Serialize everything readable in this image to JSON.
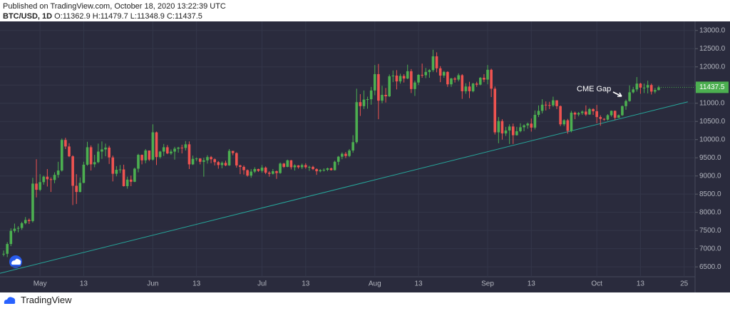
{
  "header": {
    "published": "Published on TradingView.com, October 18, 2020 13:22:39 UTC",
    "symbol": "BTC/USD, 1D",
    "ohlc": [
      "O:11362.9",
      "H:11479.7",
      "L:11348.9",
      "C:11437.5"
    ]
  },
  "footer": {
    "brand": "TradingView"
  },
  "chart_data": {
    "type": "candlestick",
    "up_color": "#4caf50",
    "down_color": "#ef5350",
    "grid": true,
    "annotation": {
      "text": "CME Gap"
    },
    "trendline": {
      "x": [
        "2020-04-20",
        "2020-10-26"
      ],
      "y": [
        6324,
        11039
      ],
      "color": "#26a69a"
    },
    "xlim": [
      "2020-04-20",
      "2020-10-28"
    ],
    "xticks": [
      {
        "value": "2020-05-01",
        "label": "May"
      },
      {
        "value": "2020-05-13",
        "label": "13"
      },
      {
        "value": "2020-06-01",
        "label": "Jun"
      },
      {
        "value": "2020-06-13",
        "label": "13"
      },
      {
        "value": "2020-07-01",
        "label": "Jul"
      },
      {
        "value": "2020-07-13",
        "label": "13"
      },
      {
        "value": "2020-08-01",
        "label": "Aug"
      },
      {
        "value": "2020-08-13",
        "label": "13"
      },
      {
        "value": "2020-09-01",
        "label": "Sep"
      },
      {
        "value": "2020-09-13",
        "label": "13"
      },
      {
        "value": "2020-10-01",
        "label": "Oct"
      },
      {
        "value": "2020-10-13",
        "label": "13"
      },
      {
        "value": "2020-10-25",
        "label": "25"
      }
    ],
    "ylim": [
      6150,
      13250
    ],
    "yticks": [
      {
        "value": 6500,
        "label": "6500.0"
      },
      {
        "value": 7000,
        "label": "7000.0"
      },
      {
        "value": 7500,
        "label": "7500.0"
      },
      {
        "value": 8000,
        "label": "8000.0"
      },
      {
        "value": 8500,
        "label": "8500.0"
      },
      {
        "value": 9000,
        "label": "9000.0"
      },
      {
        "value": 9500,
        "label": "9500.0"
      },
      {
        "value": 10000,
        "label": "10000.0"
      },
      {
        "value": 10500,
        "label": "10500.0"
      },
      {
        "value": 11000,
        "label": "11000.0"
      },
      {
        "value": 11500,
        "label": "11500.0"
      },
      {
        "value": 12000,
        "label": "12000.0"
      },
      {
        "value": 12500,
        "label": "12500.0"
      },
      {
        "value": 13000,
        "label": "13000.0"
      }
    ],
    "x": [
      "2020-04-21",
      "2020-04-22",
      "2020-04-23",
      "2020-04-24",
      "2020-04-25",
      "2020-04-26",
      "2020-04-27",
      "2020-04-28",
      "2020-04-29",
      "2020-04-30",
      "2020-05-01",
      "2020-05-02",
      "2020-05-03",
      "2020-05-04",
      "2020-05-05",
      "2020-05-06",
      "2020-05-07",
      "2020-05-08",
      "2020-05-09",
      "2020-05-10",
      "2020-05-11",
      "2020-05-12",
      "2020-05-13",
      "2020-05-14",
      "2020-05-15",
      "2020-05-16",
      "2020-05-17",
      "2020-05-18",
      "2020-05-19",
      "2020-05-20",
      "2020-05-21",
      "2020-05-22",
      "2020-05-23",
      "2020-05-24",
      "2020-05-25",
      "2020-05-26",
      "2020-05-27",
      "2020-05-28",
      "2020-05-29",
      "2020-05-30",
      "2020-05-31",
      "2020-06-01",
      "2020-06-02",
      "2020-06-03",
      "2020-06-04",
      "2020-06-05",
      "2020-06-06",
      "2020-06-07",
      "2020-06-08",
      "2020-06-09",
      "2020-06-10",
      "2020-06-11",
      "2020-06-12",
      "2020-06-13",
      "2020-06-14",
      "2020-06-15",
      "2020-06-16",
      "2020-06-17",
      "2020-06-18",
      "2020-06-19",
      "2020-06-20",
      "2020-06-21",
      "2020-06-22",
      "2020-06-23",
      "2020-06-24",
      "2020-06-25",
      "2020-06-26",
      "2020-06-27",
      "2020-06-28",
      "2020-06-29",
      "2020-06-30",
      "2020-07-01",
      "2020-07-02",
      "2020-07-03",
      "2020-07-04",
      "2020-07-05",
      "2020-07-06",
      "2020-07-07",
      "2020-07-08",
      "2020-07-09",
      "2020-07-10",
      "2020-07-11",
      "2020-07-12",
      "2020-07-13",
      "2020-07-14",
      "2020-07-15",
      "2020-07-16",
      "2020-07-17",
      "2020-07-18",
      "2020-07-19",
      "2020-07-20",
      "2020-07-21",
      "2020-07-22",
      "2020-07-23",
      "2020-07-24",
      "2020-07-25",
      "2020-07-26",
      "2020-07-27",
      "2020-07-28",
      "2020-07-29",
      "2020-07-30",
      "2020-07-31",
      "2020-08-01",
      "2020-08-02",
      "2020-08-03",
      "2020-08-04",
      "2020-08-05",
      "2020-08-06",
      "2020-08-07",
      "2020-08-08",
      "2020-08-09",
      "2020-08-10",
      "2020-08-11",
      "2020-08-12",
      "2020-08-13",
      "2020-08-14",
      "2020-08-15",
      "2020-08-16",
      "2020-08-17",
      "2020-08-18",
      "2020-08-19",
      "2020-08-20",
      "2020-08-21",
      "2020-08-22",
      "2020-08-23",
      "2020-08-24",
      "2020-08-25",
      "2020-08-26",
      "2020-08-27",
      "2020-08-28",
      "2020-08-29",
      "2020-08-30",
      "2020-08-31",
      "2020-09-01",
      "2020-09-02",
      "2020-09-03",
      "2020-09-04",
      "2020-09-05",
      "2020-09-06",
      "2020-09-07",
      "2020-09-08",
      "2020-09-09",
      "2020-09-10",
      "2020-09-11",
      "2020-09-12",
      "2020-09-13",
      "2020-09-14",
      "2020-09-15",
      "2020-09-16",
      "2020-09-17",
      "2020-09-18",
      "2020-09-19",
      "2020-09-20",
      "2020-09-21",
      "2020-09-22",
      "2020-09-23",
      "2020-09-24",
      "2020-09-25",
      "2020-09-26",
      "2020-09-27",
      "2020-09-28",
      "2020-09-29",
      "2020-09-30",
      "2020-10-01",
      "2020-10-02",
      "2020-10-03",
      "2020-10-04",
      "2020-10-05",
      "2020-10-06",
      "2020-10-07",
      "2020-10-08",
      "2020-10-09",
      "2020-10-10",
      "2020-10-11",
      "2020-10-12",
      "2020-10-13",
      "2020-10-14",
      "2020-10-15",
      "2020-10-16",
      "2020-10-17",
      "2020-10-18"
    ],
    "open": [
      6850,
      6860,
      7130,
      7490,
      7550,
      7570,
      7700,
      7790,
      7760,
      8790,
      8620,
      8830,
      8980,
      8910,
      8890,
      9030,
      9150,
      9990,
      9810,
      9540,
      8730,
      8560,
      8810,
      9310,
      9790,
      9320,
      9380,
      9670,
      9730,
      9780,
      9510,
      9060,
      9170,
      9180,
      8720,
      8900,
      8840,
      9200,
      9580,
      9430,
      9700,
      9450,
      10200,
      9520,
      9670,
      9790,
      9620,
      9670,
      9750,
      9780,
      9770,
      9870,
      9320,
      9470,
      9480,
      9390,
      9430,
      9520,
      9460,
      9380,
      9300,
      9360,
      9290,
      9690,
      9630,
      9290,
      9250,
      9160,
      9010,
      9120,
      9190,
      9140,
      9230,
      9090,
      9060,
      9130,
      9080,
      9340,
      9250,
      9430,
      9240,
      9290,
      9240,
      9300,
      9240,
      9250,
      9190,
      9130,
      9160,
      9170,
      9210,
      9160,
      9390,
      9530,
      9610,
      9550,
      9700,
      9930,
      11030,
      10920,
      11100,
      11110,
      11350,
      11800,
      11070,
      11230,
      11190,
      11740,
      11760,
      11600,
      11750,
      11680,
      11880,
      11390,
      11570,
      11780,
      11770,
      11860,
      11910,
      12290,
      11960,
      11760,
      11860,
      11520,
      11680,
      11650,
      11770,
      11330,
      11460,
      11330,
      11540,
      11510,
      11700,
      11650,
      11920,
      11400,
      10200,
      10510,
      10170,
      10250,
      10360,
      10120,
      10230,
      10340,
      10390,
      10440,
      10330,
      10680,
      10790,
      10960,
      10950,
      10940,
      11080,
      10920,
      10420,
      10530,
      10240,
      10740,
      10690,
      10730,
      10770,
      10690,
      10840,
      10780,
      10620,
      10570,
      10550,
      10670,
      10790,
      10600,
      10670,
      10920,
      11060,
      11300,
      11380,
      11540,
      11430,
      11430,
      11500,
      11320,
      11362.9
    ],
    "high": [
      6950,
      7180,
      7560,
      7690,
      7620,
      7740,
      7870,
      7830,
      8950,
      9460,
      9050,
      9010,
      9190,
      8960,
      9100,
      9390,
      10030,
      10050,
      9900,
      9570,
      9050,
      8960,
      9390,
      9940,
      9840,
      9580,
      9890,
      9950,
      9890,
      9830,
      9560,
      9270,
      9300,
      9310,
      8980,
      9010,
      9230,
      9610,
      9590,
      9740,
      9700,
      10420,
      10220,
      9690,
      9880,
      9850,
      9730,
      9800,
      9800,
      9860,
      9960,
      9950,
      9560,
      9510,
      9490,
      9500,
      9570,
      9550,
      9480,
      9410,
      9400,
      9420,
      9740,
      9690,
      9650,
      9310,
      9290,
      9180,
      9190,
      9240,
      9200,
      9300,
      9260,
      9130,
      9190,
      9150,
      9370,
      9360,
      9450,
      9440,
      9320,
      9300,
      9340,
      9350,
      9280,
      9280,
      9210,
      9190,
      9210,
      9230,
      9230,
      9420,
      9550,
      9650,
      9660,
      9740,
      10120,
      11400,
      11250,
      11350,
      11180,
      11450,
      12050,
      12080,
      11480,
      11420,
      11790,
      11900,
      11910,
      11810,
      11800,
      12060,
      11940,
      11620,
      11800,
      12090,
      11970,
      11940,
      12470,
      12400,
      12020,
      11890,
      11880,
      11700,
      11720,
      11820,
      11800,
      11550,
      11590,
      11560,
      11590,
      11720,
      11800,
      12050,
      11950,
      11460,
      10620,
      10560,
      10350,
      10420,
      10440,
      10350,
      10450,
      10420,
      10470,
      10580,
      10800,
      10940,
      11110,
      11050,
      11040,
      11180,
      11080,
      10940,
      10560,
      10570,
      10790,
      10770,
      10760,
      10800,
      10940,
      10870,
      10860,
      10950,
      10670,
      10590,
      10700,
      10800,
      10800,
      10690,
      10940,
      11100,
      11490,
      11450,
      11720,
      11560,
      11540,
      11620,
      11540,
      11420,
      11479.7
    ],
    "low": [
      6790,
      6770,
      7070,
      7440,
      7450,
      7520,
      7670,
      7680,
      7720,
      8410,
      8580,
      8760,
      8710,
      8560,
      8800,
      8950,
      9120,
      9740,
      9520,
      8200,
      8230,
      8550,
      8800,
      9280,
      9150,
      9240,
      9350,
      9470,
      9540,
      9330,
      8850,
      8990,
      9080,
      8710,
      8650,
      8720,
      8830,
      9100,
      9320,
      9350,
      9410,
      9420,
      9300,
      9480,
      9550,
      9600,
      9580,
      9450,
      9640,
      9620,
      9700,
      9190,
      9300,
      9410,
      9320,
      8980,
      9340,
      9350,
      9290,
      9200,
      9210,
      9270,
      9280,
      9570,
      9230,
      9050,
      9040,
      8980,
      8950,
      9080,
      9110,
      9090,
      9050,
      8980,
      9040,
      8920,
      9060,
      9220,
      9240,
      9180,
      9150,
      9200,
      9190,
      9200,
      9140,
      9160,
      9030,
      9100,
      9120,
      9130,
      9150,
      9150,
      9300,
      9460,
      9490,
      9520,
      9640,
      9890,
      10650,
      10840,
      10850,
      10960,
      11220,
      10560,
      11000,
      11020,
      11170,
      11580,
      11380,
      11540,
      11570,
      11660,
      11280,
      11200,
      11500,
      11700,
      11690,
      11700,
      11860,
      11850,
      11580,
      11700,
      11450,
      11450,
      11570,
      11600,
      11120,
      11260,
      11140,
      11300,
      11450,
      11490,
      11580,
      11520,
      11170,
      10140,
      9900,
      10000,
      10100,
      9880,
      9880,
      10110,
      10200,
      10230,
      10300,
      10220,
      10280,
      10620,
      10720,
      10800,
      10840,
      10900,
      10840,
      10370,
      10370,
      10160,
      10200,
      10560,
      10640,
      10680,
      10650,
      10680,
      10680,
      10450,
      10380,
      10520,
      10520,
      10630,
      10540,
      10600,
      10650,
      10820,
      11040,
      11270,
      11320,
      11260,
      11280,
      11270,
      11240,
      11270,
      11348.9
    ],
    "close": [
      6860,
      7130,
      7490,
      7550,
      7570,
      7700,
      7790,
      7760,
      8790,
      8620,
      8830,
      8980,
      8910,
      8890,
      9030,
      9150,
      9990,
      9810,
      9540,
      8730,
      8560,
      8810,
      9310,
      9790,
      9320,
      9380,
      9670,
      9730,
      9780,
      9510,
      9060,
      9170,
      9180,
      8720,
      8900,
      8840,
      9200,
      9580,
      9430,
      9700,
      9450,
      10200,
      9520,
      9670,
      9790,
      9620,
      9670,
      9750,
      9780,
      9770,
      9870,
      9320,
      9470,
      9480,
      9390,
      9430,
      9520,
      9460,
      9380,
      9300,
      9360,
      9290,
      9690,
      9630,
      9290,
      9250,
      9160,
      9010,
      9120,
      9190,
      9140,
      9230,
      9090,
      9060,
      9130,
      9080,
      9340,
      9250,
      9430,
      9240,
      9290,
      9240,
      9300,
      9240,
      9250,
      9190,
      9130,
      9160,
      9170,
      9210,
      9160,
      9390,
      9530,
      9610,
      9550,
      9700,
      9930,
      11030,
      10920,
      11100,
      11110,
      11350,
      11800,
      11070,
      11230,
      11190,
      11740,
      11760,
      11600,
      11750,
      11680,
      11880,
      11390,
      11570,
      11780,
      11770,
      11860,
      11910,
      12290,
      11960,
      11760,
      11860,
      11520,
      11680,
      11650,
      11770,
      11330,
      11460,
      11330,
      11540,
      11510,
      11700,
      11650,
      11920,
      11400,
      10200,
      10510,
      10170,
      10250,
      10360,
      10120,
      10230,
      10340,
      10390,
      10440,
      10330,
      10680,
      10790,
      10960,
      10950,
      10940,
      11080,
      10920,
      10420,
      10530,
      10240,
      10740,
      10690,
      10730,
      10770,
      10690,
      10840,
      10780,
      10620,
      10570,
      10550,
      10670,
      10790,
      10600,
      10670,
      10920,
      11060,
      11300,
      11380,
      11540,
      11430,
      11430,
      11500,
      11320,
      11362.9,
      11437.5
    ]
  }
}
